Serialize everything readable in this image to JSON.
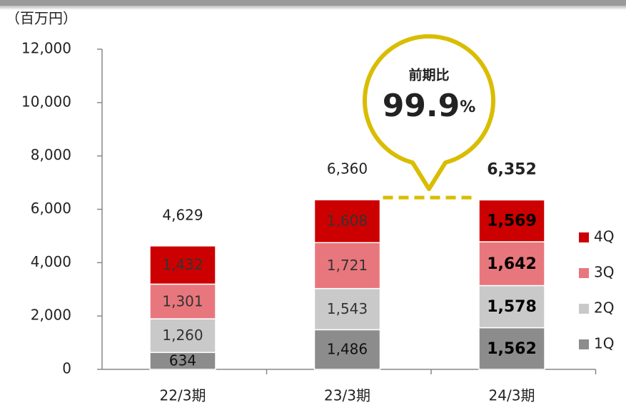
{
  "chart_data": {
    "type": "stacked_bar",
    "y_axis_label": "（百万円）",
    "categories": [
      "22/3期",
      "23/3期",
      "24/3期"
    ],
    "series": [
      {
        "name": "1Q",
        "color": "#8c8c8c",
        "values": [
          634,
          1486,
          1562
        ],
        "value_labels": [
          "634",
          "1,486",
          "1,562"
        ]
      },
      {
        "name": "2Q",
        "color": "#c9c9c9",
        "values": [
          1260,
          1543,
          1578
        ],
        "value_labels": [
          "1,260",
          "1,543",
          "1,578"
        ]
      },
      {
        "name": "3Q",
        "color": "#e8777d",
        "values": [
          1301,
          1721,
          1642
        ],
        "value_labels": [
          "1,301",
          "1,721",
          "1,642"
        ]
      },
      {
        "name": "4Q",
        "color": "#cc0000",
        "values": [
          1432,
          1608,
          1569
        ],
        "value_labels": [
          "1,432",
          "1,608",
          "1,569"
        ]
      }
    ],
    "totals": {
      "values": [
        4629,
        6360,
        6352
      ],
      "value_labels": [
        "4,629",
        "6,360",
        "6,352"
      ]
    },
    "ylim": [
      0,
      12000
    ],
    "yticks": [
      0,
      {
        "value": 2000,
        "label": "2,000"
      },
      {
        "value": 4000,
        "label": "4,000"
      },
      {
        "value": 6000,
        "label": "6,000"
      },
      {
        "value": 8000,
        "label": "8,000"
      },
      {
        "value": 10000,
        "label": "10,000"
      },
      {
        "value": 12000,
        "label": "12,000"
      }
    ],
    "annotation": {
      "title": "前期比",
      "value": 99.9,
      "unit": "%"
    }
  }
}
